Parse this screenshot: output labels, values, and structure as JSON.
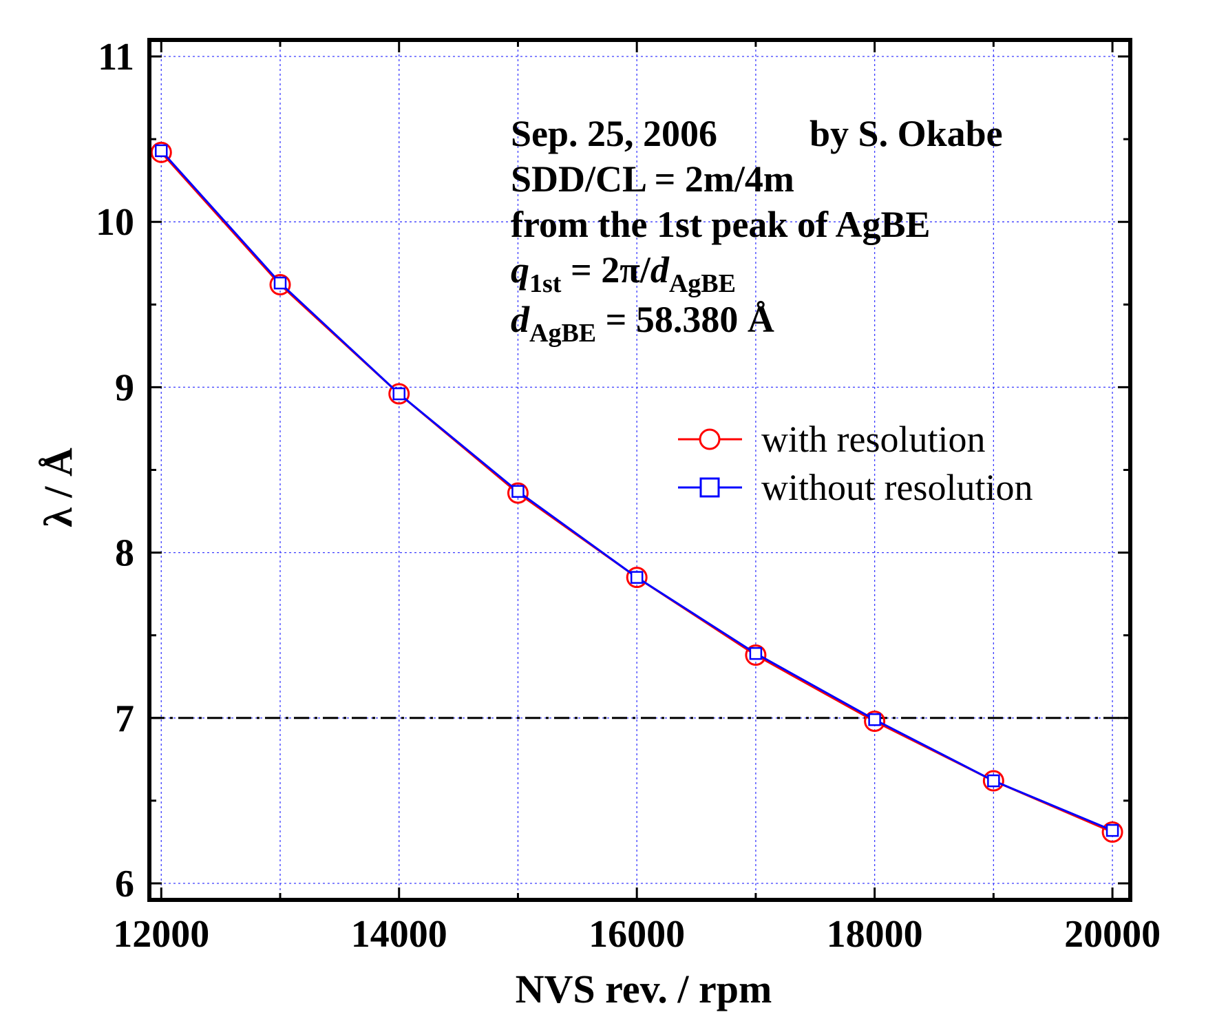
{
  "chart_data": {
    "type": "line",
    "xlabel": "NVS rev. / rpm",
    "ylabel": "λ / Å",
    "xlim": [
      11900,
      20150
    ],
    "ylim": [
      5.9,
      11.1
    ],
    "xticks": [
      12000,
      14000,
      16000,
      18000,
      20000
    ],
    "yticks": [
      6,
      7,
      8,
      9,
      10,
      11
    ],
    "grid": true,
    "reference_line": {
      "y": 7,
      "style": "dash-dot",
      "color": "#000000"
    },
    "legend": {
      "position": "center-right"
    },
    "x": [
      12000,
      13000,
      14000,
      15000,
      16000,
      17000,
      18000,
      19000,
      20000
    ],
    "series": [
      {
        "name": "with resolution",
        "color": "#ff0000",
        "marker": "circle",
        "values": [
          10.42,
          9.62,
          8.96,
          8.36,
          7.85,
          7.38,
          6.98,
          6.62,
          6.31
        ]
      },
      {
        "name": "without resolution",
        "color": "#0000ff",
        "marker": "square",
        "values": [
          10.43,
          9.63,
          8.96,
          8.37,
          7.85,
          7.39,
          6.99,
          6.62,
          6.32
        ]
      }
    ],
    "annotations": {
      "line1_date": "Sep. 25, 2006",
      "line1_author": "by S. Okabe",
      "line2": "SDD/CL = 2m/4m",
      "line3": "from the 1st peak of AgBE",
      "q_symbol": "q",
      "q_sub": "1st",
      "q_mid": " = 2π/",
      "d_symbol": "d",
      "d_sub": "AgBE",
      "d_value": " = 58.380 Å"
    }
  }
}
